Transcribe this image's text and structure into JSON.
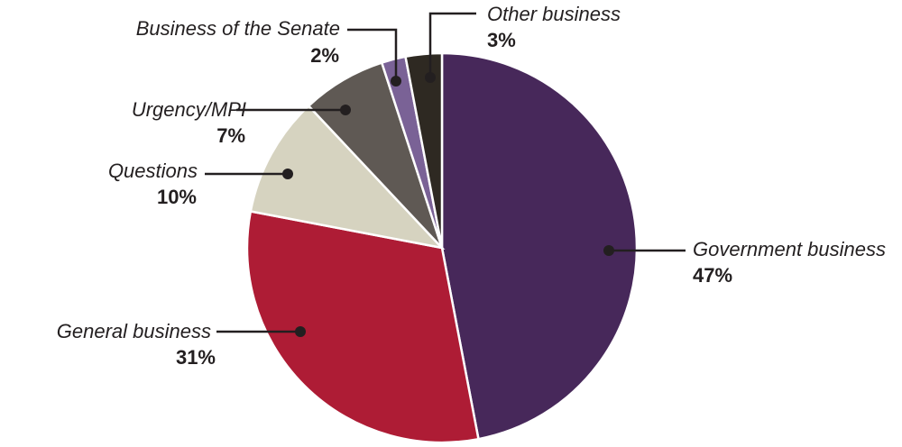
{
  "chart_data": {
    "type": "pie",
    "slices": [
      {
        "label": "Government business",
        "value": 47,
        "value_label": "47%",
        "color": "#47285a"
      },
      {
        "label": "General business",
        "value": 31,
        "value_label": "31%",
        "color": "#ae1c35"
      },
      {
        "label": "Questions",
        "value": 10,
        "value_label": "10%",
        "color": "#d6d3c0"
      },
      {
        "label": "Urgency/MPI",
        "value": 7,
        "value_label": "7%",
        "color": "#5f5954"
      },
      {
        "label": "Business of the Senate",
        "value": 2,
        "value_label": "2%",
        "color": "#7a6296"
      },
      {
        "label": "Other business",
        "value": 3,
        "value_label": "3%",
        "color": "#2e2922"
      }
    ],
    "start_angle": "12 o'clock",
    "direction": "clockwise",
    "legend": "none (callout labels)"
  }
}
